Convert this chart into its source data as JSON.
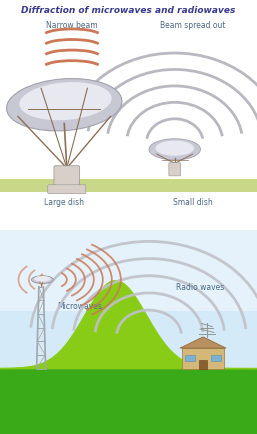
{
  "title": "Diffraction of microwaves and radiowaves",
  "title_color": "#3a3a8c",
  "title_fontsize": 6.5,
  "label_narrow": "Narrow beam",
  "label_spread": "Beam spread out",
  "label_large": "Large dish",
  "label_small": "Small dish",
  "label_microwaves": "Microwaves",
  "label_radiowaves": "Radio waves",
  "label_color": "#4a6888",
  "narrow_wave_color": "#cc7755",
  "spread_wave_color": "#b8b8c0",
  "dish_color": "#c8c8d5",
  "dish_highlight": "#e8e8f0",
  "dish_struct_color": "#8a7055",
  "ground_color_top": "#c8d888",
  "bottom_bg_top": "#d0e8f8",
  "bottom_bg_bottom": "#e8f4fc",
  "bottom_ground": "#3aaa18",
  "hill_color": "#88cc18",
  "tower_color": "#a0a8a8",
  "house_wall": "#d4b87a",
  "house_roof": "#b89060",
  "house_window": "#7ab0d0",
  "antenna_color": "#909898",
  "mw_wave_color": "#cc7755",
  "rw_wave_color": "#c0c0c8",
  "pedestal_color": "#d8d0c8"
}
